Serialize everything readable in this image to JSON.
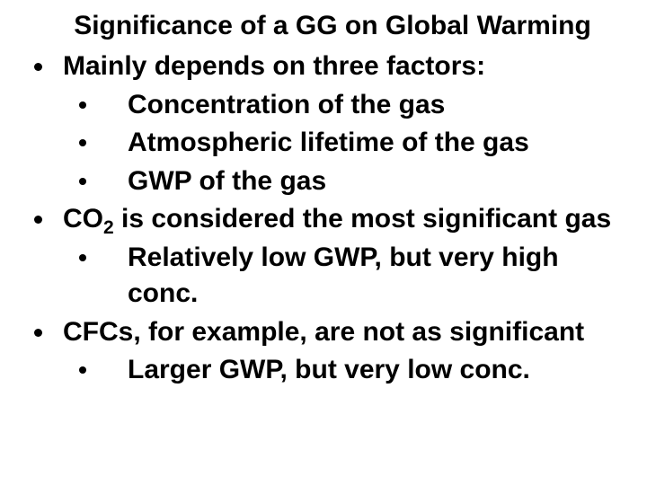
{
  "title": "Significance of a GG on Global Warming",
  "items": [
    {
      "text": "Mainly depends on three factors:",
      "children": [
        {
          "text": "Concentration of the gas"
        },
        {
          "text": "Atmospheric lifetime of the gas"
        },
        {
          "text": "GWP of the gas"
        }
      ]
    },
    {
      "text_pre": "CO",
      "text_sub": "2",
      "text_post": " is considered the most significant gas",
      "children": [
        {
          "text": "Relatively low GWP, but very high conc."
        }
      ]
    },
    {
      "text": "CFCs, for example, are not as significant",
      "children": [
        {
          "text": "Larger GWP, but very low conc."
        }
      ]
    }
  ],
  "style": {
    "background_color": "#ffffff",
    "text_color": "#000000",
    "font_family": "Arial",
    "title_fontsize": 30,
    "body_fontsize": 30,
    "font_weight": "bold",
    "bullet_color": "#000000",
    "bullet_size_l1": 9,
    "bullet_size_l2": 8,
    "line_height": 1.35
  }
}
